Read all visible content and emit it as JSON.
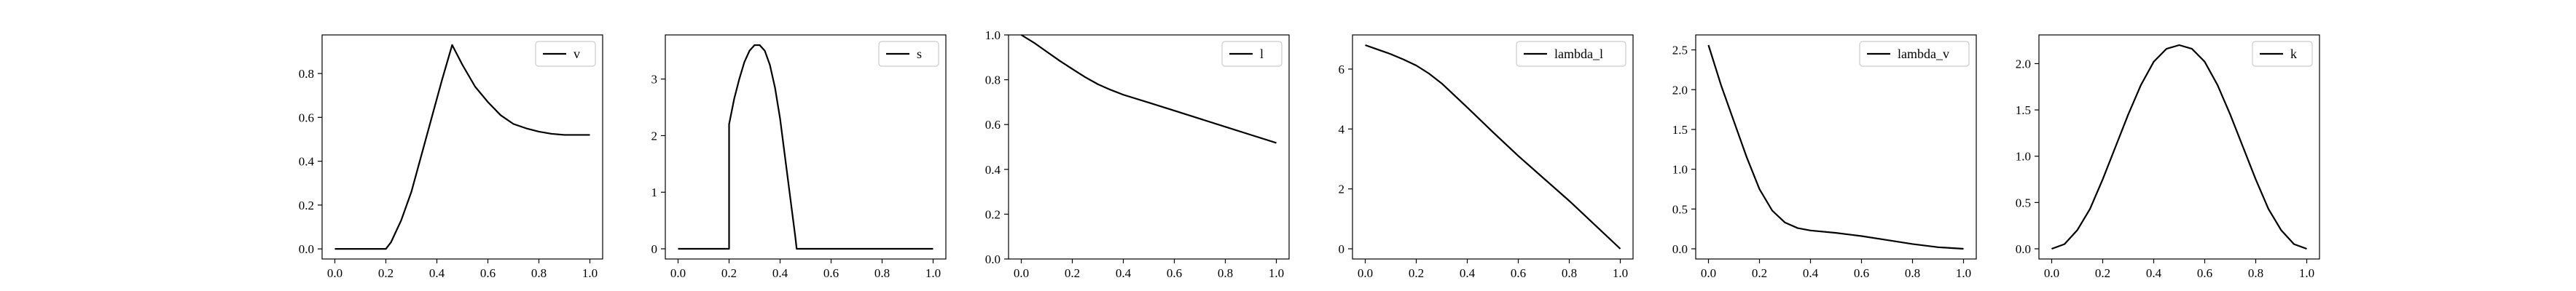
{
  "chart_data": [
    {
      "type": "line",
      "legend_placement": "upper right",
      "grid": false,
      "xlim": [
        -0.05,
        1.05
      ],
      "ylim": [
        -0.046,
        0.976
      ],
      "xticks": [
        0.0,
        0.2,
        0.4,
        0.6,
        0.8,
        1.0
      ],
      "yticks": [
        0.0,
        0.2,
        0.4,
        0.6,
        0.8
      ],
      "tick_format": 1,
      "series": [
        {
          "name": "v",
          "x": [
            0.0,
            0.2,
            0.22,
            0.26,
            0.3,
            0.34,
            0.38,
            0.42,
            0.46,
            0.5,
            0.55,
            0.6,
            0.65,
            0.7,
            0.75,
            0.8,
            0.85,
            0.9,
            0.95,
            1.0
          ],
          "y": [
            0.0,
            0.0,
            0.03,
            0.13,
            0.26,
            0.43,
            0.6,
            0.77,
            0.93,
            0.84,
            0.74,
            0.67,
            0.61,
            0.57,
            0.55,
            0.535,
            0.525,
            0.52,
            0.52,
            0.52
          ]
        }
      ]
    },
    {
      "type": "line",
      "legend_placement": "upper right",
      "grid": false,
      "xlim": [
        -0.05,
        1.05
      ],
      "ylim": [
        -0.18,
        3.78
      ],
      "xticks": [
        0.0,
        0.2,
        0.4,
        0.6,
        0.8,
        1.0
      ],
      "yticks": [
        0,
        1,
        2,
        3
      ],
      "tick_format": 0,
      "series": [
        {
          "name": "s",
          "x": [
            0.0,
            0.2,
            0.2,
            0.22,
            0.24,
            0.26,
            0.28,
            0.3,
            0.32,
            0.34,
            0.36,
            0.38,
            0.4,
            0.42,
            0.44,
            0.46,
            0.465,
            0.6,
            0.8,
            1.0
          ],
          "y": [
            0.0,
            0.0,
            2.2,
            2.65,
            3.0,
            3.3,
            3.5,
            3.6,
            3.6,
            3.5,
            3.25,
            2.85,
            2.3,
            1.6,
            0.9,
            0.2,
            0.0,
            0.0,
            0.0,
            0.0
          ]
        }
      ]
    },
    {
      "type": "line",
      "legend_placement": "upper right",
      "grid": false,
      "xlim": [
        -0.05,
        1.05
      ],
      "ylim": [
        0.0,
        1.0
      ],
      "xticks": [
        0.0,
        0.2,
        0.4,
        0.6,
        0.8,
        1.0
      ],
      "yticks": [
        0.0,
        0.2,
        0.4,
        0.6,
        0.8,
        1.0
      ],
      "tick_format": 1,
      "series": [
        {
          "name": "l",
          "x": [
            0.0,
            0.05,
            0.1,
            0.15,
            0.2,
            0.25,
            0.3,
            0.35,
            0.4,
            0.5,
            0.6,
            0.7,
            0.8,
            0.9,
            1.0
          ],
          "y": [
            1.0,
            0.965,
            0.925,
            0.885,
            0.848,
            0.812,
            0.78,
            0.755,
            0.733,
            0.698,
            0.662,
            0.626,
            0.59,
            0.554,
            0.518
          ]
        }
      ]
    },
    {
      "type": "line",
      "legend_placement": "upper right",
      "grid": false,
      "xlim": [
        -0.05,
        1.05
      ],
      "ylim": [
        -0.34,
        7.14
      ],
      "xticks": [
        0.0,
        0.2,
        0.4,
        0.6,
        0.8,
        1.0
      ],
      "yticks": [
        0,
        2,
        4,
        6
      ],
      "tick_format": 0,
      "series": [
        {
          "name": "lambda_l",
          "x": [
            0.0,
            0.05,
            0.1,
            0.15,
            0.2,
            0.25,
            0.3,
            0.35,
            0.4,
            0.5,
            0.6,
            0.7,
            0.8,
            0.9,
            1.0
          ],
          "y": [
            6.8,
            6.65,
            6.5,
            6.32,
            6.12,
            5.85,
            5.52,
            5.12,
            4.72,
            3.9,
            3.1,
            2.35,
            1.6,
            0.8,
            0.0
          ]
        }
      ]
    },
    {
      "type": "line",
      "legend_placement": "upper right",
      "grid": false,
      "xlim": [
        -0.05,
        1.05
      ],
      "ylim": [
        -0.128,
        2.688
      ],
      "xticks": [
        0.0,
        0.2,
        0.4,
        0.6,
        0.8,
        1.0
      ],
      "yticks": [
        0.0,
        0.5,
        1.0,
        1.5,
        2.0,
        2.5
      ],
      "tick_format": 1,
      "series": [
        {
          "name": "lambda_v",
          "x": [
            0.0,
            0.05,
            0.1,
            0.15,
            0.2,
            0.25,
            0.3,
            0.35,
            0.4,
            0.5,
            0.6,
            0.7,
            0.8,
            0.9,
            1.0
          ],
          "y": [
            2.56,
            2.05,
            1.6,
            1.15,
            0.75,
            0.48,
            0.33,
            0.26,
            0.23,
            0.2,
            0.16,
            0.11,
            0.06,
            0.02,
            0.0
          ]
        }
      ]
    },
    {
      "type": "line",
      "legend_placement": "upper right",
      "grid": false,
      "xlim": [
        -0.05,
        1.05
      ],
      "ylim": [
        -0.11,
        2.31
      ],
      "xticks": [
        0.0,
        0.2,
        0.4,
        0.6,
        0.8,
        1.0
      ],
      "yticks": [
        0.0,
        0.5,
        1.0,
        1.5,
        2.0
      ],
      "tick_format": 1,
      "series": [
        {
          "name": "k",
          "x": [
            0.0,
            0.05,
            0.1,
            0.15,
            0.2,
            0.25,
            0.3,
            0.35,
            0.4,
            0.45,
            0.5,
            0.55,
            0.6,
            0.65,
            0.7,
            0.75,
            0.8,
            0.85,
            0.9,
            0.95,
            1.0
          ],
          "y": [
            0.0,
            0.05,
            0.2,
            0.43,
            0.75,
            1.1,
            1.45,
            1.77,
            2.02,
            2.16,
            2.2,
            2.16,
            2.02,
            1.77,
            1.45,
            1.1,
            0.75,
            0.43,
            0.2,
            0.05,
            0.0
          ]
        }
      ]
    }
  ]
}
